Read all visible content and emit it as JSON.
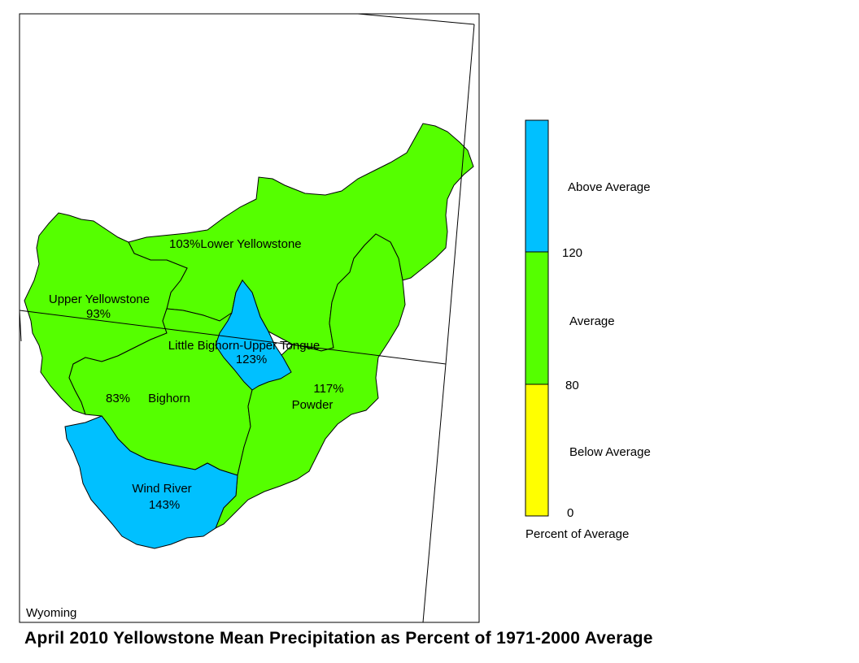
{
  "title": "April 2010 Yellowstone Mean Precipitation as Percent of 1971-2000 Average",
  "state_label": "Wyoming",
  "colors": {
    "above": "#00c0ff",
    "average": "#55ff00",
    "below": "#ffff00",
    "border": "#000000"
  },
  "basins": [
    {
      "name": "Upper Yellowstone",
      "percent": "93%",
      "category": "average"
    },
    {
      "name": "Lower Yellowstone",
      "percent": "103%",
      "category": "average"
    },
    {
      "name": "Little Bighorn-Upper Tongue",
      "percent": "123%",
      "category": "above"
    },
    {
      "name": "Bighorn",
      "percent": "83%",
      "category": "average"
    },
    {
      "name": "Powder",
      "percent": "117%",
      "category": "average"
    },
    {
      "name": "Wind River",
      "percent": "143%",
      "category": "above"
    }
  ],
  "legend": {
    "title": "Percent of Average",
    "classes": [
      {
        "label": "Above Average",
        "color": "#00c0ff"
      },
      {
        "label": "Average",
        "color": "#55ff00"
      },
      {
        "label": "Below Average",
        "color": "#ffff00"
      }
    ],
    "ticks": [
      "120",
      "80",
      "0"
    ]
  }
}
